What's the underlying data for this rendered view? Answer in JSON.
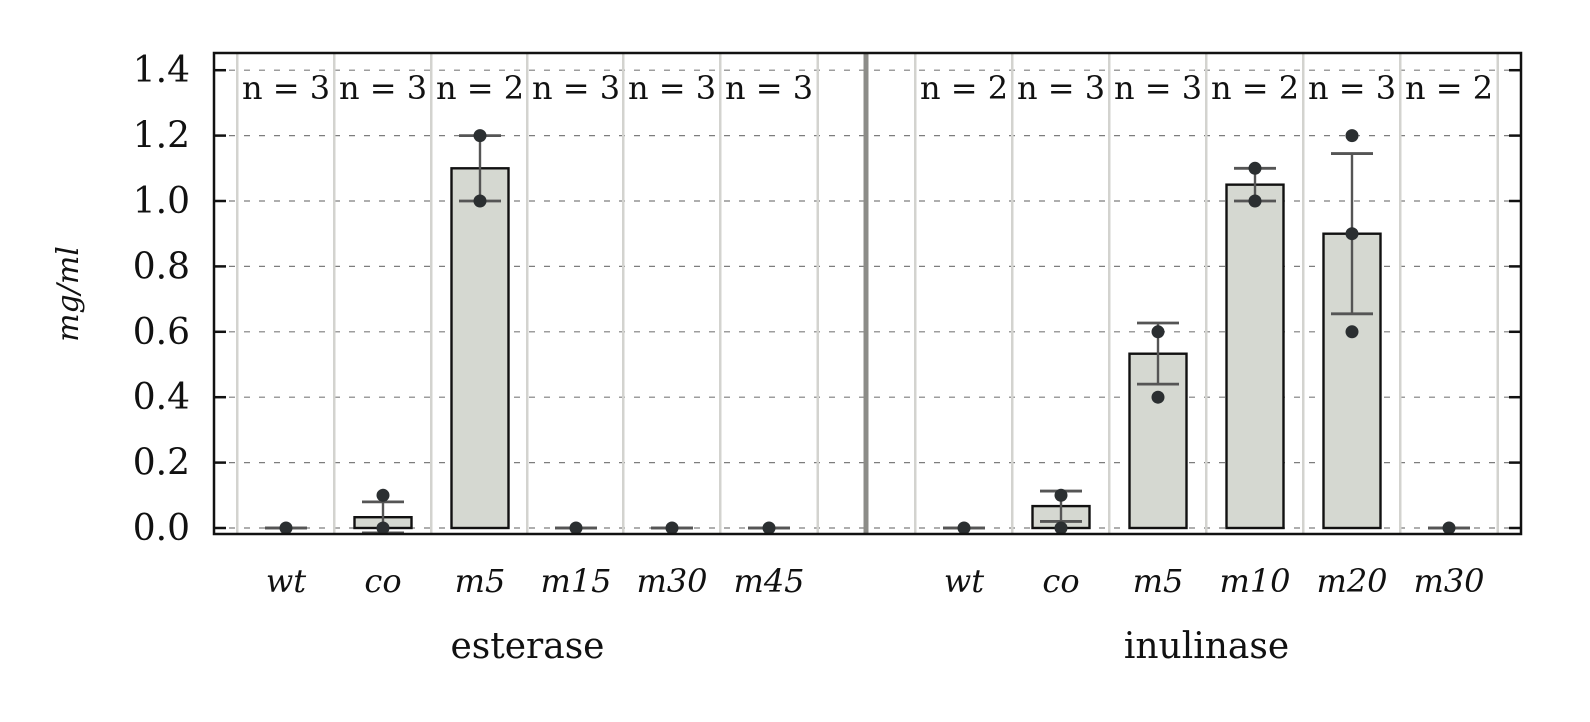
{
  "chart_data": {
    "type": "bar",
    "ylabel": "mg/ml",
    "ylim": [
      0,
      1.45
    ],
    "yticks": [
      "0.0",
      "0.2",
      "0.4",
      "0.6",
      "0.8",
      "1.0",
      "1.2",
      "1.4"
    ],
    "grid": true,
    "colors": {
      "bar": "#d5d8d1",
      "edge": "#111111",
      "error": "#555555",
      "point": "#2b2f31",
      "separator": "#8c8c88",
      "vgrid": "#d3d3cf"
    },
    "groups": [
      {
        "name": "esterase",
        "bars": [
          {
            "label": "wt",
            "n": "n = 3",
            "mean": 0.0,
            "err_low": 0.0,
            "err_high": 0.0,
            "points": [
              0.0
            ]
          },
          {
            "label": "co",
            "n": "n = 3",
            "mean": 0.033,
            "err_low": -0.015,
            "err_high": 0.08,
            "points": [
              0.1,
              0.0
            ]
          },
          {
            "label": "m5",
            "n": "n = 2",
            "mean": 1.1,
            "err_low": 1.0,
            "err_high": 1.2,
            "points": [
              1.2,
              1.0
            ]
          },
          {
            "label": "m15",
            "n": "n = 3",
            "mean": 0.0,
            "err_low": 0.0,
            "err_high": 0.0,
            "points": [
              0.0
            ]
          },
          {
            "label": "m30",
            "n": "n = 3",
            "mean": 0.0,
            "err_low": 0.0,
            "err_high": 0.0,
            "points": [
              0.0
            ]
          },
          {
            "label": "m45",
            "n": "n = 3",
            "mean": 0.0,
            "err_low": 0.0,
            "err_high": 0.0,
            "points": [
              0.0
            ]
          }
        ]
      },
      {
        "name": "inulinase",
        "bars": [
          {
            "label": "wt",
            "n": "n = 2",
            "mean": 0.0,
            "err_low": 0.0,
            "err_high": 0.0,
            "points": [
              0.0
            ]
          },
          {
            "label": "co",
            "n": "n = 3",
            "mean": 0.067,
            "err_low": 0.02,
            "err_high": 0.113,
            "points": [
              0.1,
              0.0
            ]
          },
          {
            "label": "m5",
            "n": "n = 3",
            "mean": 0.533,
            "err_low": 0.44,
            "err_high": 0.627,
            "points": [
              0.6,
              0.4
            ]
          },
          {
            "label": "m10",
            "n": "n = 2",
            "mean": 1.05,
            "err_low": 1.0,
            "err_high": 1.1,
            "points": [
              1.1,
              1.0
            ]
          },
          {
            "label": "m20",
            "n": "n = 3",
            "mean": 0.9,
            "err_low": 0.655,
            "err_high": 1.145,
            "points": [
              1.2,
              0.9,
              0.6
            ]
          },
          {
            "label": "m30",
            "n": "n = 2",
            "mean": 0.0,
            "err_low": 0.0,
            "err_high": 0.0,
            "points": [
              0.0
            ]
          }
        ]
      }
    ]
  }
}
